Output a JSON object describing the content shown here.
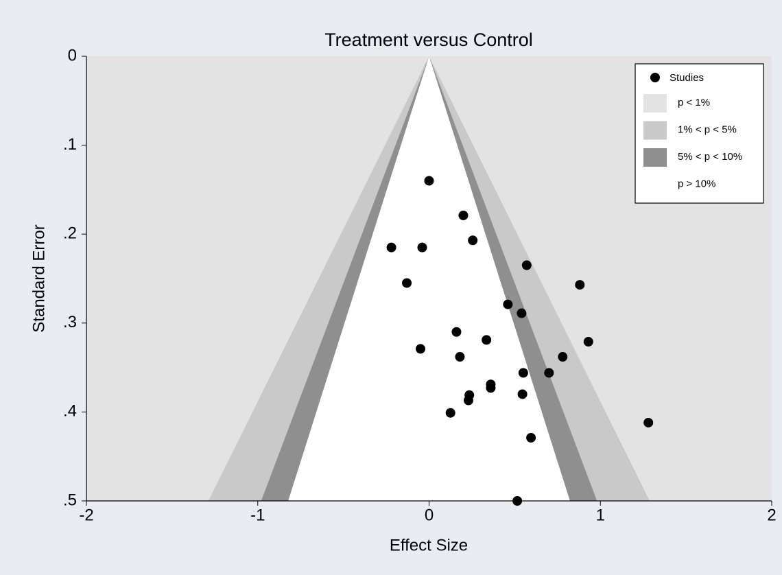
{
  "chart_data": {
    "type": "funnel",
    "title": "Treatment versus Control",
    "x_label": "Effect Size",
    "y_label": "Standard Error",
    "xlim": [
      -2,
      2
    ],
    "xticks": [
      -2,
      -1,
      0,
      1,
      2
    ],
    "ylim": [
      0,
      0.5
    ],
    "y_inverted": true,
    "yticks": [
      0,
      {
        "value": 0.1,
        "label": ".1"
      },
      {
        "value": 0.2,
        "label": ".2"
      },
      {
        "value": 0.3,
        "label": ".3"
      },
      {
        "value": 0.4,
        "label": ".4"
      },
      {
        "value": 0.5,
        "label": ".5"
      }
    ],
    "significance_levels": [
      1,
      5,
      10
    ],
    "regions": [
      {
        "name": "p < 1%",
        "color": "#e3e3e3"
      },
      {
        "name": "1% < p < 5%",
        "color": "#c9c9c9"
      },
      {
        "name": "5% < p < 10%",
        "color": "#8f8f8f"
      },
      {
        "name": "p > 10%",
        "color": "#ffffff"
      }
    ],
    "series": [
      {
        "name": "Studies",
        "color": "#000000",
        "x": [
          0.0,
          0.2,
          -0.22,
          -0.04,
          0.255,
          0.57,
          -0.13,
          0.88,
          0.46,
          0.54,
          0.16,
          0.335,
          0.93,
          -0.05,
          0.18,
          0.78,
          0.55,
          0.7,
          0.36,
          0.36,
          0.235,
          0.23,
          0.545,
          0.125,
          1.28,
          0.595,
          0.515
        ],
        "values": [
          0.14,
          0.179,
          0.215,
          0.215,
          0.207,
          0.235,
          0.255,
          0.257,
          0.279,
          0.289,
          0.31,
          0.319,
          0.321,
          0.329,
          0.338,
          0.338,
          0.356,
          0.356,
          0.369,
          0.373,
          0.381,
          0.387,
          0.38,
          0.401,
          0.412,
          0.429,
          0.5
        ]
      }
    ],
    "legend": "top-right"
  }
}
